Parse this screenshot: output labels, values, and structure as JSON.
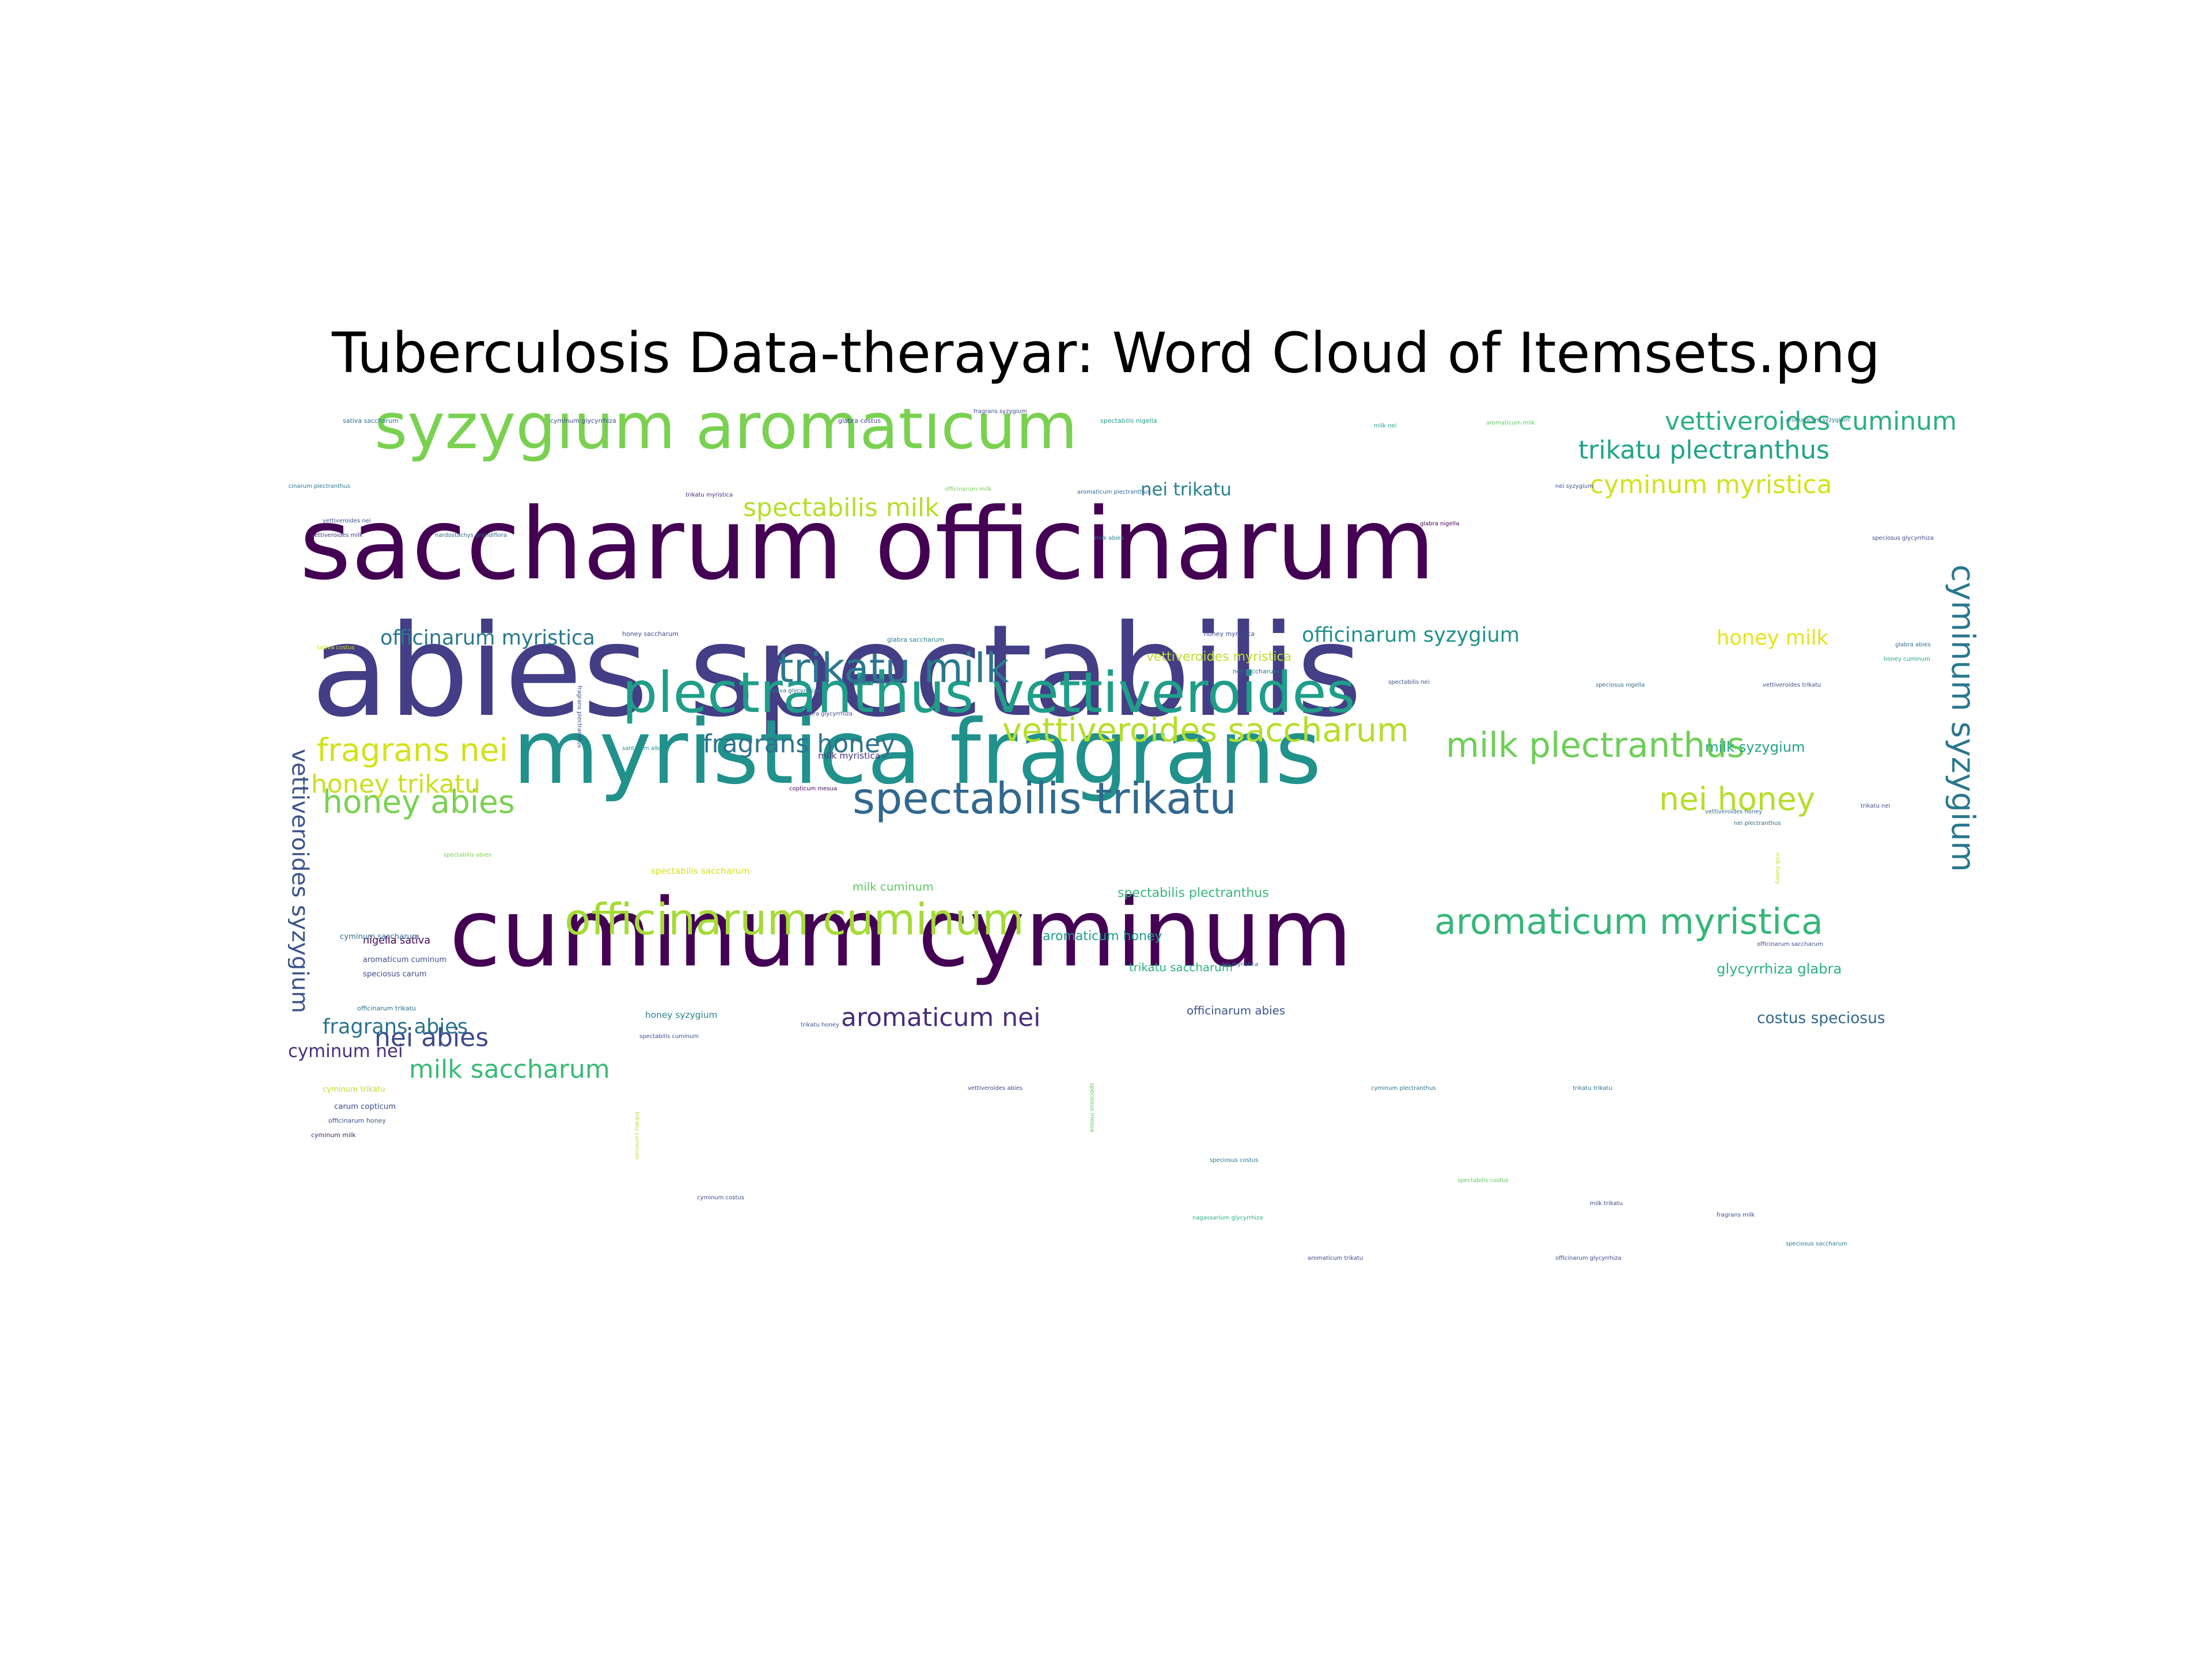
{
  "chart_data": {
    "type": "wordcloud",
    "title": "Tuberculosis Data-therayar: Word Cloud of Itemsets.png",
    "words": [
      {
        "text": "abies spectabilis",
        "weight": 100,
        "color": "#433e85"
      },
      {
        "text": "saccharum officinarum",
        "weight": 78,
        "color": "#440154"
      },
      {
        "text": "cuminum cyminum",
        "weight": 74,
        "color": "#440154"
      },
      {
        "text": "myristica fragrans",
        "weight": 70,
        "color": "#21918c"
      },
      {
        "text": "syzygium aromaticum",
        "weight": 50,
        "color": "#7ad151"
      },
      {
        "text": "plectranthus vettiveroides",
        "weight": 44,
        "color": "#1f9e89"
      },
      {
        "text": "spectabilis trikatu",
        "weight": 34,
        "color": "#31688e"
      },
      {
        "text": "officinarum cuminum",
        "weight": 34,
        "color": "#a5db36"
      },
      {
        "text": "trikatu milk",
        "weight": 32,
        "color": "#2a788e"
      },
      {
        "text": "aromaticum myristica",
        "weight": 28,
        "color": "#35b779"
      },
      {
        "text": "milk plectranthus",
        "weight": 27,
        "color": "#6ece58"
      },
      {
        "text": "vettiveroides saccharum",
        "weight": 26,
        "color": "#b5de2b"
      },
      {
        "text": "fragrans nei",
        "weight": 25,
        "color": "#d2e21b"
      },
      {
        "text": "honey abies",
        "weight": 25,
        "color": "#7ad151"
      },
      {
        "text": "nei honey",
        "weight": 25,
        "color": "#b5de2b"
      },
      {
        "text": "cyminum syzygium",
        "weight": 25,
        "color": "#2a788e"
      },
      {
        "text": "vettiveroides syzygium",
        "weight": 18,
        "color": "#3b528b"
      },
      {
        "text": "vettiveroides cuminum",
        "weight": 20,
        "color": "#2ab07f"
      },
      {
        "text": "trikatu plectranthus",
        "weight": 20,
        "color": "#20a486"
      },
      {
        "text": "cyminum myristica",
        "weight": 20,
        "color": "#d2e21b"
      },
      {
        "text": "spectabilis milk",
        "weight": 20,
        "color": "#b5de2b"
      },
      {
        "text": "fragrans honey",
        "weight": 20,
        "color": "#2c728e"
      },
      {
        "text": "honey trikatu",
        "weight": 20,
        "color": "#c8e020"
      },
      {
        "text": "milk saccharum",
        "weight": 20,
        "color": "#3aba76"
      },
      {
        "text": "nei abies",
        "weight": 20,
        "color": "#3e4a89"
      },
      {
        "text": "aromaticum nei",
        "weight": 20,
        "color": "#472d7b"
      },
      {
        "text": "officinarum myristica",
        "weight": 16,
        "color": "#2a788e"
      },
      {
        "text": "officinarum syzygium",
        "weight": 16,
        "color": "#21918c"
      },
      {
        "text": "honey milk",
        "weight": 16,
        "color": "#e5e419"
      },
      {
        "text": "fragrans abies",
        "weight": 16,
        "color": "#2c728e"
      },
      {
        "text": "cyminum nei",
        "weight": 14,
        "color": "#46327e"
      },
      {
        "text": "nei trikatu",
        "weight": 14,
        "color": "#26828e"
      },
      {
        "text": "costus speciosus",
        "weight": 12,
        "color": "#31688e"
      },
      {
        "text": "glycyrrhiza glabra",
        "weight": 11,
        "color": "#2ab07f"
      },
      {
        "text": "milk syzygium",
        "weight": 11,
        "color": "#20a486"
      },
      {
        "text": "aromaticum honey",
        "weight": 10,
        "color": "#1f9e89"
      },
      {
        "text": "spectabilis plectranthus",
        "weight": 10,
        "color": "#35b779"
      },
      {
        "text": "vettiveroides myristica",
        "weight": 10,
        "color": "#bddf26"
      },
      {
        "text": "officinarum abies",
        "weight": 9,
        "color": "#3b528b"
      },
      {
        "text": "trikatu saccharum",
        "weight": 9,
        "color": "#2ab07f"
      },
      {
        "text": "milk cuminum",
        "weight": 9,
        "color": "#5ec962"
      },
      {
        "text": "nigella sativa",
        "weight": 8,
        "color": "#440154"
      },
      {
        "text": "spectabilis saccharum",
        "weight": 7,
        "color": "#d2e21b"
      },
      {
        "text": "milk myristica",
        "weight": 7,
        "color": "#46327e"
      },
      {
        "text": "honey syzygium",
        "weight": 7,
        "color": "#26828e"
      },
      {
        "text": "aromaticum cuminum",
        "weight": 6,
        "color": "#3b528b"
      },
      {
        "text": "speciosus carum",
        "weight": 6,
        "color": "#3e4a89"
      },
      {
        "text": "cyminum saccharum",
        "weight": 6,
        "color": "#31688e"
      },
      {
        "text": "cyminum trikatu",
        "weight": 6,
        "color": "#bddf26"
      },
      {
        "text": "carum copticum",
        "weight": 6,
        "color": "#3e4a89"
      },
      {
        "text": "officinarum honey",
        "weight": 5,
        "color": "#3b528b"
      },
      {
        "text": "cyminum milk",
        "weight": 5,
        "color": "#481f70"
      },
      {
        "text": "officinarum trikatu",
        "weight": 5,
        "color": "#2c728e"
      },
      {
        "text": "glabra saccharum",
        "weight": 5,
        "color": "#26828e"
      },
      {
        "text": "honey myristica",
        "weight": 5,
        "color": "#3e4a89"
      },
      {
        "text": "spectabilis nigella",
        "weight": 5,
        "color": "#1f9e89"
      },
      {
        "text": "sativa saccharum",
        "weight": 5,
        "color": "#2c728e"
      },
      {
        "text": "cyminum glycyrrhiza",
        "weight": 5,
        "color": "#3b528b"
      },
      {
        "text": "glabra costus",
        "weight": 5,
        "color": "#3e4a89"
      },
      {
        "text": "milk nei",
        "weight": 4,
        "color": "#20a486"
      },
      {
        "text": "aromaticum syzygium",
        "weight": 4,
        "color": "#2c728e"
      },
      {
        "text": "aromaticum milk",
        "weight": 4,
        "color": "#5ec962"
      },
      {
        "text": "officinarum plectranthus",
        "weight": 4,
        "color": "#2a788e"
      },
      {
        "text": "trikatu myristica",
        "weight": 4,
        "color": "#482878"
      },
      {
        "text": "officinarum milk",
        "weight": 4,
        "color": "#7ad151"
      },
      {
        "text": "aromaticum plectranthus",
        "weight": 4,
        "color": "#31688e"
      },
      {
        "text": "nei syzygium",
        "weight": 4,
        "color": "#3b528b"
      },
      {
        "text": "vettiveroides nei",
        "weight": 4,
        "color": "#3b528b"
      },
      {
        "text": "vettiveroides milk",
        "weight": 4,
        "color": "#46327e"
      },
      {
        "text": "nardostachys grandiflora",
        "weight": 4,
        "color": "#31688e"
      },
      {
        "text": "glabra nigella",
        "weight": 4,
        "color": "#440154"
      },
      {
        "text": "speciosus glycyrrhiza",
        "weight": 4,
        "color": "#3e4a89"
      },
      {
        "text": "milk abies",
        "weight": 4,
        "color": "#26828e"
      },
      {
        "text": "honey saccharum",
        "weight": 5,
        "color": "#3e4a89"
      },
      {
        "text": "nei saccharum",
        "weight": 5,
        "color": "#2c728e"
      },
      {
        "text": "glabra abies",
        "weight": 4,
        "color": "#31688e"
      },
      {
        "text": "honey cuminum",
        "weight": 4,
        "color": "#20a486"
      },
      {
        "text": "vettiveroides trikatu",
        "weight": 4,
        "color": "#3e4a89"
      },
      {
        "text": "speciosus nigella",
        "weight": 4,
        "color": "#31688e"
      },
      {
        "text": "spectabilis nei",
        "weight": 4,
        "color": "#3b528b"
      },
      {
        "text": "sativa glycyrrhiza",
        "weight": 4,
        "color": "#2c728e"
      },
      {
        "text": "glabra glycyrrhiza",
        "weight": 4,
        "color": "#3e4a89"
      },
      {
        "text": "copticum mesua",
        "weight": 4,
        "color": "#440154"
      },
      {
        "text": "santalum album",
        "weight": 3,
        "color": "#21918c"
      },
      {
        "text": "sativa costus",
        "weight": 4,
        "color": "#d2e21b"
      },
      {
        "text": "fragrans plectranthus",
        "weight": 4,
        "color": "#3b528b"
      },
      {
        "text": "vettiveroides honey",
        "weight": 3,
        "color": "#31688e"
      },
      {
        "text": "nei plectranthus",
        "weight": 3,
        "color": "#31688e"
      },
      {
        "text": "trikatu nei",
        "weight": 3,
        "color": "#3e4a89"
      },
      {
        "text": "officinarum saccharum",
        "weight": 3,
        "color": "#3e4a89"
      },
      {
        "text": "nei myristica",
        "weight": 3,
        "color": "#31688e"
      },
      {
        "text": "spectabilis cuminum",
        "weight": 4,
        "color": "#3b528b"
      },
      {
        "text": "trikatu honey",
        "weight": 4,
        "color": "#3b528b"
      },
      {
        "text": "honey honey",
        "weight": 3,
        "color": "#3b528b"
      },
      {
        "text": "vettiveroides abies",
        "weight": 4,
        "color": "#3e4a89"
      },
      {
        "text": "cyminum plectranthus",
        "weight": 4,
        "color": "#2c728e"
      },
      {
        "text": "trikatu trikatu",
        "weight": 3,
        "color": "#2c728e"
      },
      {
        "text": "speciosus costus",
        "weight": 4,
        "color": "#2a788e"
      },
      {
        "text": "milk trikatu",
        "weight": 4,
        "color": "#3e4a89"
      },
      {
        "text": "fragrans milk",
        "weight": 4,
        "color": "#3e4a89"
      },
      {
        "text": "speciosus saccharum",
        "weight": 4,
        "color": "#2a788e"
      },
      {
        "text": "officinarum glycyrrhiza",
        "weight": 4,
        "color": "#3e4a89"
      },
      {
        "text": "aromaticum trikatu",
        "weight": 4,
        "color": "#3e4a89"
      },
      {
        "text": "nagassarium glycyrrhiza",
        "weight": 4,
        "color": "#2ab07f"
      },
      {
        "text": "cyminum costus",
        "weight": 4,
        "color": "#3e4a89"
      },
      {
        "text": "spectabilis costus",
        "weight": 4,
        "color": "#5ec962"
      },
      {
        "text": "trikatu cuminum",
        "weight": 4,
        "color": "#bddf26"
      },
      {
        "text": "fragrans syzygium",
        "weight": 3,
        "color": "#3e4a89"
      },
      {
        "text": "milk honey",
        "weight": 3,
        "color": "#bddf26"
      },
      {
        "text": "mesua nagassarium",
        "weight": 3,
        "color": "#3e4a89"
      },
      {
        "text": "speciosus mesua",
        "weight": 3,
        "color": "#5ec962"
      },
      {
        "text": "spectabilis abies",
        "weight": 3,
        "color": "#7ad151"
      }
    ]
  }
}
